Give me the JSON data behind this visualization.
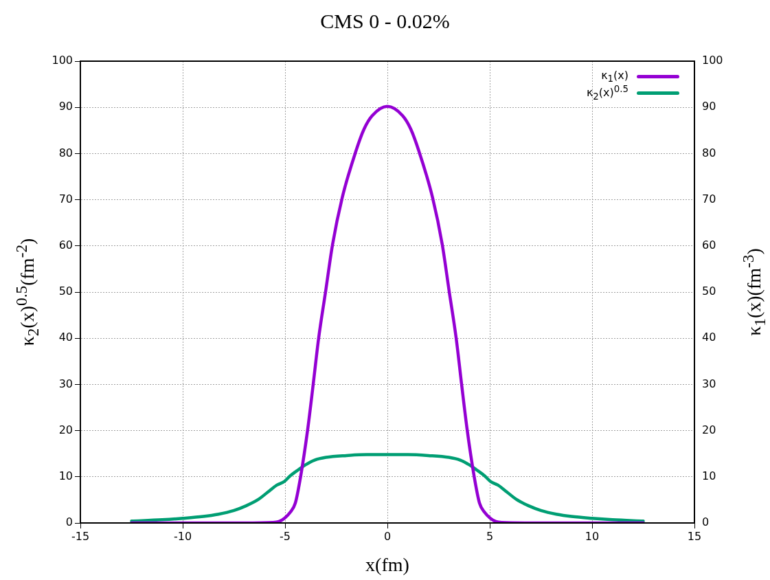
{
  "chart_data": {
    "type": "line",
    "title": "CMS 0 - 0.02%",
    "xlabel": "x(fm)",
    "ylabel": "κ$_{2}$(x)$^{0.5}$(fm$^{-2}$)",
    "y2label": "κ$_{1}$(x)(fm$^{-3}$)",
    "xlim": [
      -15,
      15
    ],
    "xticks": [
      -15,
      -10,
      -5,
      0,
      5,
      10,
      15
    ],
    "ylim": [
      0,
      100
    ],
    "yticks": [
      0,
      10,
      20,
      30,
      40,
      50,
      60,
      70,
      80,
      90,
      100
    ],
    "y2lim": [
      0,
      100
    ],
    "y2ticks": [
      0,
      10,
      20,
      30,
      40,
      50,
      60,
      70,
      80,
      90,
      100
    ],
    "grid": true,
    "legend": "top right",
    "marker": "none",
    "series": [
      {
        "name": "κ$_{1}$(x)",
        "color": "#9400d3",
        "axis": "y2",
        "x": [
          -12.5,
          -10,
          -7,
          -5.6,
          -5.3,
          -5.03,
          -4.75,
          -4.5,
          -4.23,
          -3.89,
          -3.62,
          -3.36,
          -3.02,
          -2.68,
          -2.21,
          -1.54,
          -1.14,
          -0.74,
          0,
          0.74,
          1.14,
          1.54,
          2.21,
          2.68,
          3.02,
          3.36,
          3.62,
          3.89,
          4.23,
          4.5,
          4.75,
          5.03,
          5.3,
          5.6,
          7,
          10,
          12.5
        ],
        "values": [
          0,
          0,
          0,
          0.1,
          0.3,
          1,
          2.3,
          4.3,
          10.3,
          20.4,
          30.2,
          40,
          50.1,
          60.3,
          70.4,
          80.5,
          85.3,
          88.2,
          90.2,
          88.2,
          85.3,
          80.5,
          70.4,
          60.3,
          50.1,
          40,
          30.2,
          20.4,
          10.3,
          4.3,
          2.3,
          1,
          0.3,
          0.1,
          0,
          0,
          0
        ]
      },
      {
        "name": "κ$_{2}$(x)$^{0.5}$",
        "color": "#009e73",
        "x": [
          -12.5,
          -11,
          -10,
          -9,
          -8.25,
          -7.5,
          -6.91,
          -6.3,
          -5.84,
          -5.4,
          -5.03,
          -4.75,
          -4.36,
          -4,
          -3.56,
          -3,
          -2,
          -1,
          0,
          1,
          2,
          3,
          3.56,
          4,
          4.36,
          4.75,
          5.03,
          5.4,
          5.84,
          6.3,
          6.91,
          7.5,
          8.25,
          9,
          10,
          11,
          12.5
        ],
        "values": [
          0.4,
          0.7,
          1,
          1.4,
          1.9,
          2.7,
          3.7,
          5.1,
          6.7,
          8.2,
          9,
          10.2,
          11.5,
          12.6,
          13.6,
          14.2,
          14.6,
          14.8,
          14.8,
          14.8,
          14.6,
          14.2,
          13.6,
          12.6,
          11.5,
          10.2,
          9,
          8.2,
          6.7,
          5.1,
          3.7,
          2.7,
          1.9,
          1.4,
          1,
          0.7,
          0.4
        ]
      }
    ]
  }
}
